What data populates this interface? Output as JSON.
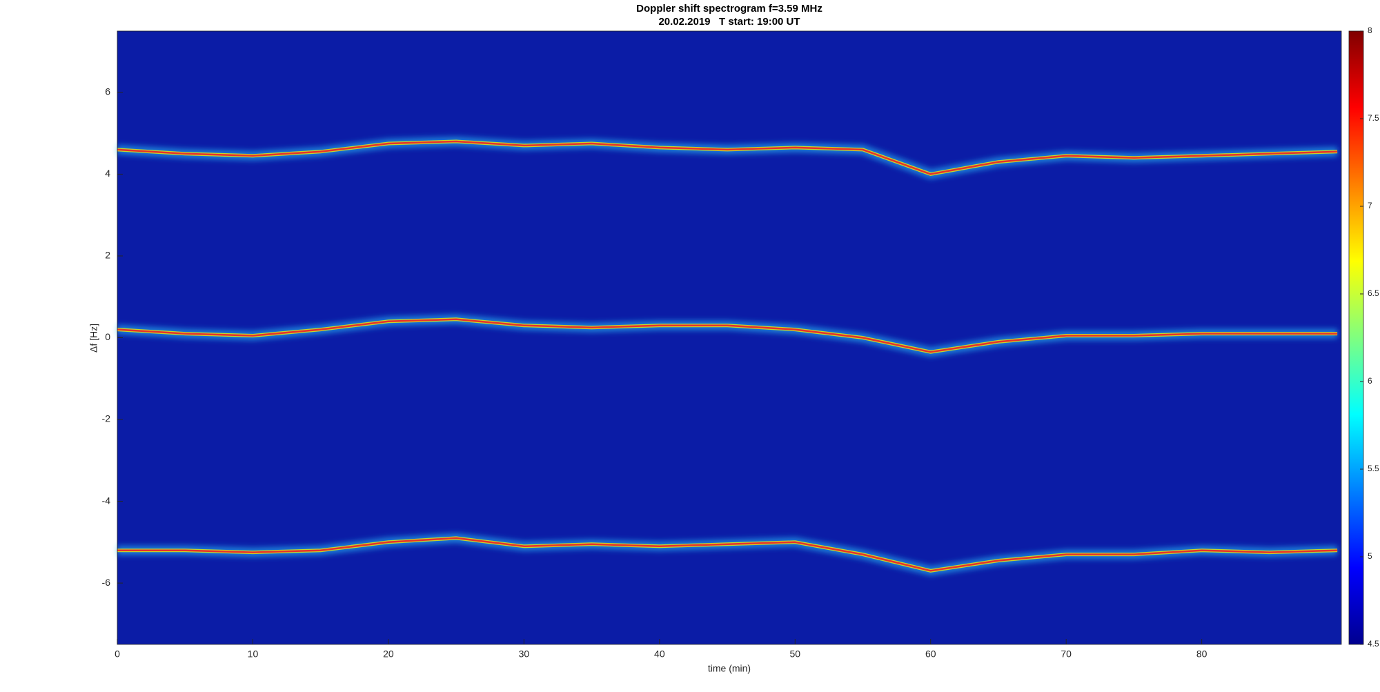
{
  "chart_data": {
    "type": "line",
    "title": "Doppler shift spectrogram f=3.59 MHz",
    "subtitle": "20.02.2019   T start: 19:00 UT",
    "x_label": "time (min)",
    "y_label": "Δf [Hz]",
    "background": "#0b1ca6",
    "x": [
      0,
      5,
      10,
      15,
      20,
      25,
      30,
      35,
      40,
      45,
      50,
      55,
      60,
      65,
      70,
      75,
      80,
      85,
      90
    ],
    "series": [
      {
        "color": "#e8312a",
        "values": [
          4.6,
          4.5,
          4.45,
          4.55,
          4.75,
          4.8,
          4.7,
          4.75,
          4.65,
          4.6,
          4.65,
          4.6,
          4.0,
          4.3,
          4.45,
          4.4,
          4.45,
          4.5,
          4.55
        ]
      },
      {
        "color": "#e8312a",
        "values": [
          0.2,
          0.1,
          0.05,
          0.2,
          0.4,
          0.45,
          0.3,
          0.25,
          0.3,
          0.3,
          0.2,
          0.0,
          -0.35,
          -0.1,
          0.05,
          0.05,
          0.1,
          0.1,
          0.1
        ]
      },
      {
        "color": "#e8312a",
        "values": [
          -5.2,
          -5.2,
          -5.25,
          -5.2,
          -5.0,
          -4.9,
          -5.1,
          -5.05,
          -5.1,
          -5.05,
          -5.0,
          -5.3,
          -5.7,
          -5.45,
          -5.3,
          -5.3,
          -5.2,
          -5.25,
          -5.2
        ]
      }
    ],
    "xlim": [
      0,
      90.3
    ],
    "xticks": [
      0,
      10,
      20,
      30,
      40,
      50,
      60,
      70,
      80
    ],
    "ylim": [
      -7.5,
      7.5
    ],
    "yticks": [
      -6,
      -4,
      -2,
      0,
      2,
      4,
      6
    ],
    "colorbar": {
      "lim": [
        4.5,
        8
      ],
      "ticks": [
        4.5,
        5,
        5.5,
        6,
        6.5,
        7,
        7.5,
        8
      ]
    }
  }
}
